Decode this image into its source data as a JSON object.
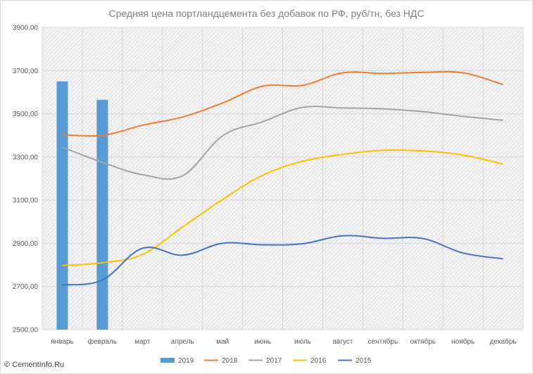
{
  "chart_data": {
    "type": "bar",
    "title": "Средняя цена портландцемента без добавок по РФ, руб/тн, без НДС",
    "xlabel": "",
    "ylabel": "",
    "categories": [
      "январь",
      "февраль",
      "март",
      "апрель",
      "май",
      "июнь",
      "июль",
      "август",
      "сентябрь",
      "октябрь",
      "ноябрь",
      "декабрь"
    ],
    "ylim": [
      2500,
      3900
    ],
    "yticks": [
      "2500,00",
      "2700,00",
      "2900,00",
      "3100,00",
      "3300,00",
      "3500,00",
      "3700,00",
      "3900,00"
    ],
    "grid": true,
    "legend_position": "bottom",
    "series": [
      {
        "name": "2019",
        "kind": "bar",
        "color": "#5b9bd5",
        "values": [
          3650,
          3565,
          null,
          null,
          null,
          null,
          null,
          null,
          null,
          null,
          null,
          null
        ]
      },
      {
        "name": "2018",
        "kind": "line",
        "color": "#ed7d31",
        "values": [
          3403,
          3400,
          3447,
          3485,
          3550,
          3628,
          3632,
          3690,
          3687,
          3692,
          3690,
          3635
        ]
      },
      {
        "name": "2017",
        "kind": "line",
        "color": "#a5a5a5",
        "values": [
          3345,
          3275,
          3218,
          3213,
          3398,
          3463,
          3530,
          3527,
          3523,
          3510,
          3488,
          3470
        ]
      },
      {
        "name": "2016",
        "kind": "line",
        "color": "#ffc000",
        "values": [
          2797,
          2810,
          2848,
          2975,
          3103,
          3215,
          3280,
          3312,
          3331,
          3328,
          3309,
          3267
        ]
      },
      {
        "name": "2015",
        "kind": "line",
        "color": "#4472c4",
        "values": [
          2707,
          2730,
          2877,
          2845,
          2900,
          2893,
          2898,
          2935,
          2923,
          2922,
          2855,
          2828
        ]
      }
    ]
  },
  "watermark": "© CementInfo.Ru"
}
